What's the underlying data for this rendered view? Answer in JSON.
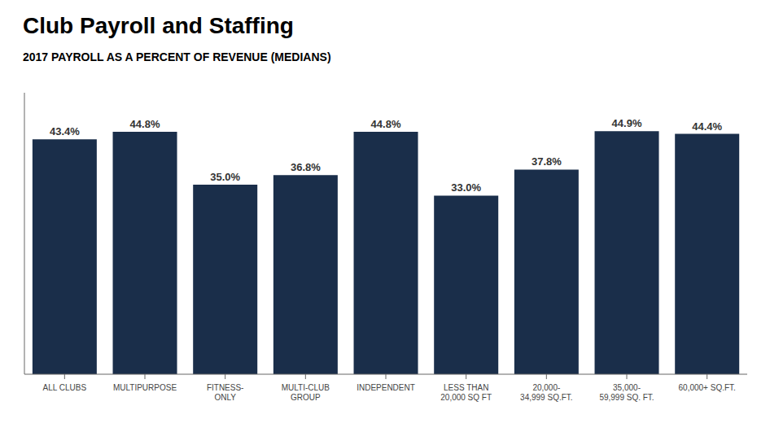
{
  "chart_data": {
    "type": "bar",
    "title": "Club Payroll and Staffing",
    "subtitle": "2017 PAYROLL AS A PERCENT OF REVENUE (MEDIANS)",
    "categories": [
      "ALL CLUBS",
      "MULTIPURPOSE",
      "FITNESS-\nONLY",
      "MULTI-CLUB\nGROUP",
      "INDEPENDENT",
      "LESS THAN\n20,000 SQ FT",
      "20,000-\n34,999 SQ.FT.",
      "35,000-\n59,999 SQ. FT.",
      "60,000+ SQ.FT."
    ],
    "values": [
      43.4,
      44.8,
      35.0,
      36.8,
      44.8,
      33.0,
      37.8,
      44.9,
      44.4
    ],
    "value_labels": [
      "43.4%",
      "44.8%",
      "35.0%",
      "36.8%",
      "44.8%",
      "33.0%",
      "37.8%",
      "44.9%",
      "44.4%"
    ],
    "data_labels": true,
    "color": "#1a2e4a",
    "ylim": [
      0,
      52
    ],
    "tick_labels": "x",
    "grid": false
  }
}
